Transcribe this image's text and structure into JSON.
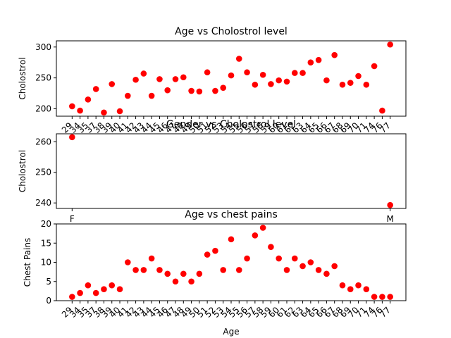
{
  "chart_data": [
    {
      "type": "scatter",
      "title": "Age vs Cholostrol level",
      "xlabel": "",
      "ylabel": "Cholostrol",
      "color": "#ff0000",
      "categories": [
        "29",
        "34",
        "35",
        "37",
        "38",
        "39",
        "40",
        "41",
        "42",
        "43",
        "44",
        "45",
        "46",
        "47",
        "48",
        "49",
        "50",
        "51",
        "52",
        "53",
        "54",
        "55",
        "56",
        "57",
        "58",
        "59",
        "60",
        "61",
        "62",
        "63",
        "64",
        "65",
        "66",
        "67",
        "68",
        "69",
        "70",
        "71",
        "74",
        "76",
        "77"
      ],
      "values": [
        204,
        197,
        215,
        232,
        194,
        240,
        196,
        221,
        247,
        257,
        221,
        248,
        230,
        248,
        251,
        229,
        228,
        259,
        229,
        234,
        254,
        281,
        259,
        239,
        255,
        240,
        246,
        244,
        258,
        258,
        275,
        279,
        246,
        287,
        239,
        242,
        253,
        239,
        269,
        197,
        304
      ],
      "yticks": [
        200,
        250,
        300
      ],
      "ylim": [
        188,
        310
      ]
    },
    {
      "type": "scatter",
      "title": "Gender vs Cholostrol level",
      "xlabel": "",
      "ylabel": "Cholostrol",
      "color": "#ff0000",
      "categories": [
        "F",
        "M"
      ],
      "values": [
        261.5,
        239.3
      ],
      "yticks": [
        240,
        250,
        260
      ],
      "ylim": [
        238.2,
        262.6
      ]
    },
    {
      "type": "scatter",
      "title": "Age vs chest pains",
      "xlabel": "Age",
      "ylabel": "Chest Pains",
      "color": "#ff0000",
      "categories": [
        "29",
        "34",
        "35",
        "37",
        "38",
        "39",
        "40",
        "41",
        "42",
        "43",
        "44",
        "45",
        "46",
        "47",
        "48",
        "49",
        "50",
        "51",
        "52",
        "53",
        "54",
        "55",
        "56",
        "57",
        "58",
        "59",
        "60",
        "61",
        "62",
        "63",
        "64",
        "65",
        "66",
        "67",
        "68",
        "69",
        "70",
        "71",
        "74",
        "76",
        "77"
      ],
      "values": [
        1,
        2,
        4,
        2,
        3,
        4,
        3,
        10,
        8,
        8,
        11,
        8,
        7,
        5,
        7,
        5,
        7,
        12,
        13,
        8,
        16,
        8,
        11,
        17,
        19,
        14,
        11,
        8,
        11,
        9,
        10,
        8,
        7,
        9,
        4,
        3,
        4,
        3,
        1,
        1,
        1
      ],
      "yticks": [
        0,
        5,
        10,
        15,
        20
      ],
      "ylim": [
        0,
        20
      ]
    }
  ]
}
